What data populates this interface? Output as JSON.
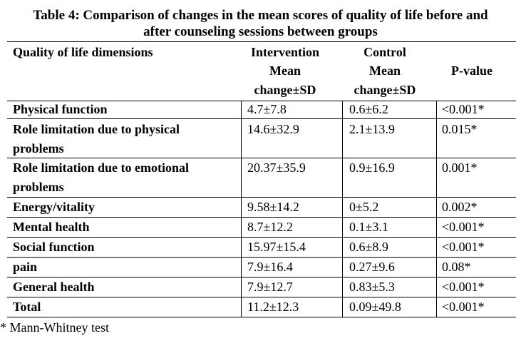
{
  "title_line1": "Table 4: Comparison of changes in the mean scores of quality of life before and",
  "title_line2": "after counseling sessions between groups",
  "headers": {
    "dimension": "Quality of life dimensions",
    "intervention": [
      "Intervention",
      "Mean",
      "change±SD"
    ],
    "control": [
      "Control",
      "Mean",
      "change±SD"
    ],
    "pvalue": "P-value"
  },
  "rows": [
    {
      "dimension": [
        "Physical function"
      ],
      "intervention": "4.7±7.8",
      "control": "0.6±6.2",
      "p": "<0.001*"
    },
    {
      "dimension": [
        "Role limitation due to physical",
        "problems"
      ],
      "intervention": "14.6±32.9",
      "control": "2.1±13.9",
      "p": "0.015*"
    },
    {
      "dimension": [
        "Role limitation due to emotional",
        "problems"
      ],
      "intervention": "20.37±35.9",
      "control": "0.9±16.9",
      "p": "0.001*"
    },
    {
      "dimension": [
        "Energy/vitality"
      ],
      "intervention": "9.58±14.2",
      "control": "0±5.2",
      "p": "0.002*"
    },
    {
      "dimension": [
        "Mental health"
      ],
      "intervention": "8.7±12.2",
      "control": "0.1±3.1",
      "p": "<0.001*"
    },
    {
      "dimension": [
        "Social function"
      ],
      "intervention": "15.97±15.4",
      "control": "0.6±8.9",
      "p": "<0.001*"
    },
    {
      "dimension": [
        "pain"
      ],
      "intervention": "7.9±16.4",
      "control": "0.27±9.6",
      "p": "0.08*"
    },
    {
      "dimension": [
        "General health"
      ],
      "intervention": "7.9±12.7",
      "control": "0.83±5.3",
      "p": "<0.001*"
    },
    {
      "dimension": [
        "Total"
      ],
      "intervention": "11.2±12.3",
      "control": "0.09±49.8",
      "p": "<0.001*"
    }
  ],
  "footnote": "* Mann-Whitney test"
}
